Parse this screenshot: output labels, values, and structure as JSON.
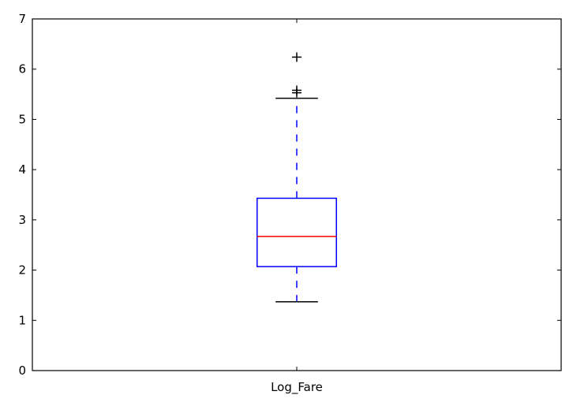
{
  "chart_data": {
    "type": "boxplot",
    "title": "",
    "xlabel": "",
    "ylabel": "",
    "categories": [
      "Log_Fare"
    ],
    "ylim": [
      0,
      7
    ],
    "yticks": [
      0,
      1,
      2,
      3,
      4,
      5,
      6,
      7
    ],
    "grid": false,
    "boxes": [
      {
        "category": "Log_Fare",
        "whisker_low": 1.37,
        "q1": 2.07,
        "median": 2.67,
        "q3": 3.43,
        "whisker_high": 5.42,
        "outliers": [
          5.53,
          5.58,
          6.24
        ]
      }
    ],
    "colors": {
      "box": "#0000ff",
      "whisker": "#0000ff",
      "median": "#ff0000",
      "cap": "#000000",
      "flier": "#000000",
      "axes": "#000000"
    }
  }
}
